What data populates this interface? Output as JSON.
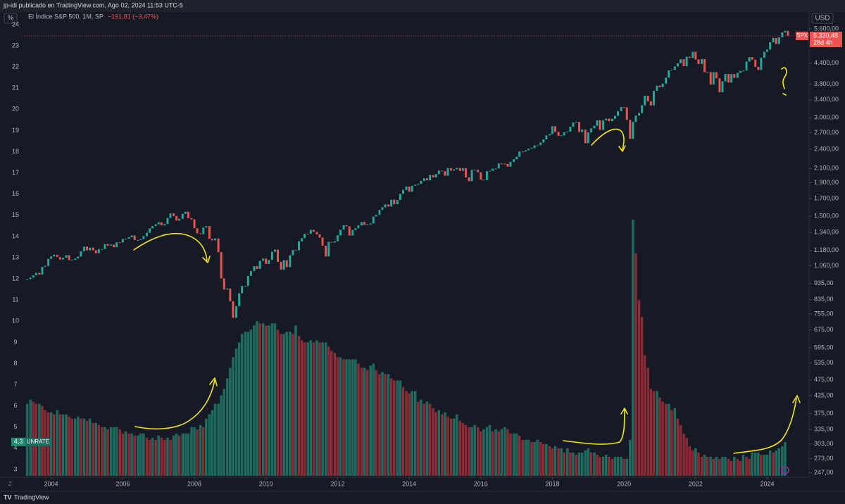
{
  "header": "jp-idi publicado en TradingView.com, Ago 02, 2024 11:53 UTC-5",
  "footer": "TradingView",
  "chart_data": {
    "type": "combo",
    "legend_title": "El Índice S&P 500, 1M, SP",
    "legend_change": "−191,81 (−3,47%)",
    "y_unit": "%",
    "y2_unit": "USD",
    "price_tag": {
      "symbol": "SPX",
      "label": "5.330,48",
      "countdown": "28d 4h"
    },
    "xlim": [
      2003.2,
      2025.15
    ],
    "xticks": [
      2004,
      2006,
      2008,
      2010,
      2012,
      2014,
      2016,
      2018,
      2020,
      2022,
      2024
    ],
    "ylim": [
      2.7,
      24.23
    ],
    "yticks": [
      3,
      4,
      5,
      6,
      7,
      8,
      9,
      10,
      11,
      12,
      13,
      14,
      15,
      16,
      17,
      18,
      19,
      20,
      21,
      22,
      23,
      24
    ],
    "y2lim": [
      242,
      5972
    ],
    "y2_log": true,
    "y2ticks": [
      {
        "value": 247,
        "label": "247,00"
      },
      {
        "value": 273,
        "label": "273,00"
      },
      {
        "value": 303,
        "label": "303,00"
      },
      {
        "value": 335,
        "label": "335,00"
      },
      {
        "value": 375,
        "label": "375,00"
      },
      {
        "value": 425,
        "label": "425,00"
      },
      {
        "value": 475,
        "label": "475,00"
      },
      {
        "value": 535,
        "label": "535,00"
      },
      {
        "value": 595,
        "label": "595,00"
      },
      {
        "value": 675,
        "label": "675,00"
      },
      {
        "value": 755,
        "label": "755,00"
      },
      {
        "value": 835,
        "label": "835,00"
      },
      {
        "value": 935,
        "label": "935,00"
      },
      {
        "value": 1060,
        "label": "1.060,00"
      },
      {
        "value": 1180,
        "label": "1.180,00"
      },
      {
        "value": 1340,
        "label": "1.340,00"
      },
      {
        "value": 1500,
        "label": "1.500,00"
      },
      {
        "value": 1700,
        "label": "1.700,00"
      },
      {
        "value": 1900,
        "label": "1.900,00"
      },
      {
        "value": 2100,
        "label": "2.100,00"
      },
      {
        "value": 2400,
        "label": "2.400,00"
      },
      {
        "value": 2700,
        "label": "2.700,00"
      },
      {
        "value": 3000,
        "label": "3.000,00"
      },
      {
        "value": 3400,
        "label": "3.400,00"
      },
      {
        "value": 3800,
        "label": "3.800,00"
      },
      {
        "value": 4400,
        "label": "4.400,00"
      },
      {
        "value": 5000,
        "label": "5.000,00"
      },
      {
        "value": 5600,
        "label": "5.600,00"
      }
    ],
    "x": [
      2003.33,
      2003.42,
      2003.5,
      2003.58,
      2003.67,
      2003.75,
      2003.83,
      2003.92,
      2004,
      2004.08,
      2004.17,
      2004.25,
      2004.33,
      2004.42,
      2004.5,
      2004.58,
      2004.67,
      2004.75,
      2004.83,
      2004.92,
      2005,
      2005.08,
      2005.17,
      2005.25,
      2005.33,
      2005.42,
      2005.5,
      2005.58,
      2005.67,
      2005.75,
      2005.83,
      2005.92,
      2006,
      2006.08,
      2006.17,
      2006.25,
      2006.33,
      2006.42,
      2006.5,
      2006.58,
      2006.67,
      2006.75,
      2006.83,
      2006.92,
      2007,
      2007.08,
      2007.17,
      2007.25,
      2007.33,
      2007.42,
      2007.5,
      2007.58,
      2007.67,
      2007.75,
      2007.83,
      2007.92,
      2008,
      2008.08,
      2008.17,
      2008.25,
      2008.33,
      2008.42,
      2008.5,
      2008.58,
      2008.67,
      2008.75,
      2008.83,
      2008.92,
      2009,
      2009.08,
      2009.17,
      2009.25,
      2009.33,
      2009.42,
      2009.5,
      2009.58,
      2009.67,
      2009.75,
      2009.83,
      2009.92,
      2010,
      2010.08,
      2010.17,
      2010.25,
      2010.33,
      2010.42,
      2010.5,
      2010.58,
      2010.67,
      2010.75,
      2010.83,
      2010.92,
      2011,
      2011.08,
      2011.17,
      2011.25,
      2011.33,
      2011.42,
      2011.5,
      2011.58,
      2011.67,
      2011.75,
      2011.83,
      2011.92,
      2012,
      2012.08,
      2012.17,
      2012.25,
      2012.33,
      2012.42,
      2012.5,
      2012.58,
      2012.67,
      2012.75,
      2012.83,
      2012.92,
      2013,
      2013.08,
      2013.17,
      2013.25,
      2013.33,
      2013.42,
      2013.5,
      2013.58,
      2013.67,
      2013.75,
      2013.83,
      2013.92,
      2014,
      2014.08,
      2014.17,
      2014.25,
      2014.33,
      2014.42,
      2014.5,
      2014.58,
      2014.67,
      2014.75,
      2014.83,
      2014.92,
      2015,
      2015.08,
      2015.17,
      2015.25,
      2015.33,
      2015.42,
      2015.5,
      2015.58,
      2015.67,
      2015.75,
      2015.83,
      2015.92,
      2016,
      2016.08,
      2016.17,
      2016.25,
      2016.33,
      2016.42,
      2016.5,
      2016.58,
      2016.67,
      2016.75,
      2016.83,
      2016.92,
      2017,
      2017.08,
      2017.17,
      2017.25,
      2017.33,
      2017.42,
      2017.5,
      2017.58,
      2017.67,
      2017.75,
      2017.83,
      2017.92,
      2018,
      2018.08,
      2018.17,
      2018.25,
      2018.33,
      2018.42,
      2018.5,
      2018.58,
      2018.67,
      2018.75,
      2018.83,
      2018.92,
      2019,
      2019.08,
      2019.17,
      2019.25,
      2019.33,
      2019.42,
      2019.5,
      2019.58,
      2019.67,
      2019.75,
      2019.83,
      2019.92,
      2020,
      2020.08,
      2020.17,
      2020.25,
      2020.33,
      2020.42,
      2020.5,
      2020.58,
      2020.67,
      2020.75,
      2020.83,
      2020.92,
      2021,
      2021.08,
      2021.17,
      2021.25,
      2021.33,
      2021.42,
      2021.5,
      2021.58,
      2021.67,
      2021.75,
      2021.83,
      2021.92,
      2022,
      2022.08,
      2022.17,
      2022.25,
      2022.33,
      2022.42,
      2022.5,
      2022.58,
      2022.67,
      2022.75,
      2022.83,
      2022.92,
      2023,
      2023.08,
      2023.17,
      2023.25,
      2023.33,
      2023.42,
      2023.5,
      2023.58,
      2023.67,
      2023.75,
      2023.83,
      2023.92,
      2024,
      2024.08,
      2024.17,
      2024.25,
      2024.33,
      2024.42,
      2024.5,
      2024.58
    ],
    "series": [
      {
        "name": "SPX",
        "type": "candlestick",
        "axis": "y2",
        "color": "#26a69a",
        "color_down": "#ef5350",
        "values": [
          964,
          975,
          990,
          1008,
          996,
          1051,
          1058,
          1112,
          1131,
          1145,
          1126,
          1107,
          1121,
          1141,
          1102,
          1104,
          1115,
          1130,
          1174,
          1212,
          1181,
          1204,
          1181,
          1157,
          1191,
          1191,
          1234,
          1220,
          1229,
          1207,
          1249,
          1248,
          1280,
          1281,
          1295,
          1311,
          1270,
          1270,
          1277,
          1304,
          1336,
          1378,
          1401,
          1418,
          1438,
          1407,
          1421,
          1482,
          1531,
          1503,
          1455,
          1474,
          1527,
          1549,
          1481,
          1468,
          1379,
          1331,
          1323,
          1386,
          1400,
          1280,
          1267,
          1283,
          1166,
          969,
          896,
          903,
          826,
          735,
          798,
          873,
          919,
          919,
          987,
          1021,
          1057,
          1036,
          1096,
          1115,
          1074,
          1104,
          1169,
          1187,
          1089,
          1031,
          1102,
          1049,
          1141,
          1183,
          1181,
          1258,
          1286,
          1327,
          1326,
          1364,
          1345,
          1321,
          1292,
          1219,
          1131,
          1253,
          1247,
          1258,
          1312,
          1366,
          1408,
          1398,
          1310,
          1362,
          1379,
          1407,
          1441,
          1412,
          1416,
          1426,
          1498,
          1515,
          1569,
          1598,
          1631,
          1606,
          1686,
          1633,
          1682,
          1757,
          1806,
          1848,
          1783,
          1859,
          1872,
          1884,
          1924,
          1960,
          1931,
          2003,
          1972,
          2018,
          2068,
          2059,
          1995,
          2105,
          2068,
          2086,
          2107,
          2063,
          2104,
          1972,
          1920,
          2079,
          2080,
          2044,
          1940,
          1932,
          2060,
          2065,
          2097,
          2099,
          2174,
          2171,
          2168,
          2126,
          2199,
          2239,
          2279,
          2364,
          2363,
          2384,
          2412,
          2423,
          2470,
          2472,
          2519,
          2575,
          2648,
          2674,
          2824,
          2714,
          2641,
          2648,
          2705,
          2718,
          2816,
          2902,
          2914,
          2712,
          2760,
          2507,
          2704,
          2784,
          2834,
          2946,
          2752,
          2942,
          2980,
          2926,
          2977,
          3038,
          3141,
          3231,
          3226,
          2954,
          2585,
          2912,
          3044,
          3100,
          3271,
          3500,
          3363,
          3270,
          3622,
          3756,
          3714,
          3811,
          3973,
          4181,
          4204,
          4298,
          4395,
          4523,
          4308,
          4605,
          4567,
          4766,
          4516,
          4374,
          4530,
          4132,
          4132,
          3785,
          4130,
          3955,
          3586,
          3872,
          4080,
          3840,
          4077,
          3970,
          4109,
          4169,
          4180,
          4450,
          4589,
          4508,
          4288,
          4194,
          4568,
          4770,
          4846,
          5096,
          5254,
          5036,
          5278,
          5460,
          5522,
          5330.48
        ]
      },
      {
        "name": "UNRATE",
        "type": "bar",
        "axis": "y",
        "color": "#1d6b5f",
        "color_down": "#8a2b36",
        "last_value_label": "4,3",
        "values": [
          6.1,
          6.3,
          6.2,
          6.1,
          6.1,
          6.0,
          5.8,
          5.7,
          5.7,
          5.6,
          5.8,
          5.6,
          5.6,
          5.6,
          5.5,
          5.4,
          5.4,
          5.5,
          5.4,
          5.4,
          5.3,
          5.4,
          5.2,
          5.2,
          5.1,
          5.0,
          5.0,
          4.9,
          5.0,
          5.0,
          5.0,
          4.9,
          4.7,
          4.8,
          4.7,
          4.7,
          4.6,
          4.6,
          4.7,
          4.7,
          4.5,
          4.4,
          4.5,
          4.4,
          4.6,
          4.5,
          4.4,
          4.5,
          4.4,
          4.6,
          4.7,
          4.6,
          4.7,
          4.7,
          4.7,
          5.0,
          5.0,
          4.9,
          5.1,
          5.0,
          5.4,
          5.6,
          5.8,
          6.1,
          6.1,
          6.5,
          6.8,
          7.3,
          7.8,
          8.3,
          8.7,
          9.0,
          9.4,
          9.5,
          9.5,
          9.6,
          9.8,
          10.0,
          9.9,
          9.9,
          9.8,
          9.8,
          9.9,
          9.9,
          9.6,
          9.4,
          9.4,
          9.5,
          9.5,
          9.4,
          9.8,
          9.3,
          9.1,
          9.0,
          9.0,
          9.1,
          9.0,
          9.1,
          9.0,
          9.0,
          9.0,
          8.8,
          8.6,
          8.5,
          8.3,
          8.3,
          8.2,
          8.2,
          8.2,
          8.2,
          8.2,
          8.0,
          7.8,
          7.8,
          7.7,
          7.9,
          8.0,
          7.7,
          7.5,
          7.6,
          7.5,
          7.5,
          7.3,
          7.2,
          7.2,
          7.2,
          6.9,
          6.7,
          6.6,
          6.7,
          6.7,
          6.2,
          6.3,
          6.1,
          6.2,
          6.1,
          5.9,
          5.7,
          5.8,
          5.6,
          5.7,
          5.5,
          5.4,
          5.4,
          5.6,
          5.3,
          5.2,
          5.1,
          5.0,
          5.0,
          5.1,
          5.0,
          4.8,
          4.9,
          5.0,
          5.1,
          4.8,
          4.9,
          4.8,
          4.9,
          5.0,
          4.9,
          4.7,
          4.7,
          4.7,
          4.6,
          4.4,
          4.4,
          4.4,
          4.3,
          4.3,
          4.4,
          4.3,
          4.2,
          4.2,
          4.1,
          4.0,
          4.1,
          4.0,
          4.0,
          3.8,
          4.0,
          3.8,
          3.8,
          3.7,
          3.8,
          3.8,
          3.9,
          4.0,
          3.8,
          3.8,
          3.7,
          3.6,
          3.6,
          3.7,
          3.6,
          3.5,
          3.6,
          3.6,
          3.6,
          3.5,
          3.5,
          4.4,
          14.8,
          13.2,
          11.0,
          10.2,
          8.4,
          7.8,
          6.8,
          6.7,
          6.7,
          6.4,
          6.2,
          6.1,
          6.1,
          5.8,
          5.9,
          5.4,
          5.1,
          4.7,
          4.5,
          4.1,
          3.9,
          4.0,
          3.8,
          3.6,
          3.7,
          3.6,
          3.6,
          3.5,
          3.6,
          3.5,
          3.6,
          3.6,
          3.5,
          3.4,
          3.6,
          3.5,
          3.4,
          3.7,
          3.6,
          3.5,
          3.8,
          3.8,
          3.8,
          3.7,
          3.7,
          3.7,
          3.9,
          3.8,
          3.9,
          4.0,
          4.1,
          4.3,
          null
        ]
      }
    ]
  }
}
